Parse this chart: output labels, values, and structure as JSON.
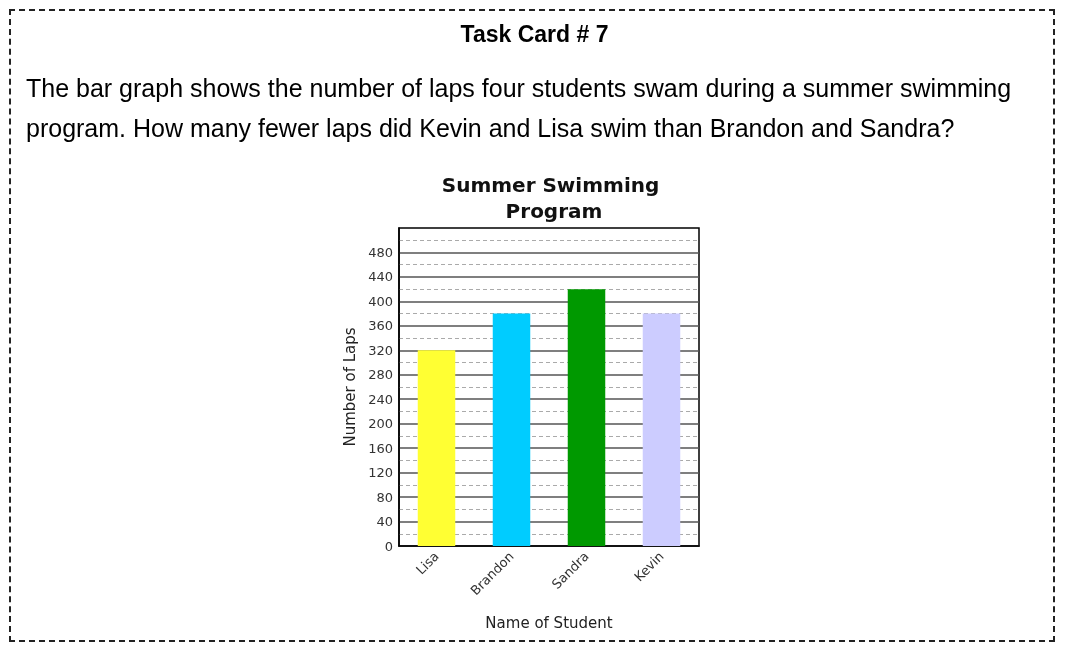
{
  "chart_data": {
    "type": "bar",
    "title": "Summer Swimming Program",
    "xlabel": "Name of Student",
    "ylabel": "Number of Laps",
    "categories": [
      "Lisa",
      "Brandon",
      "Sandra",
      "Kevin"
    ],
    "values": [
      320,
      380,
      420,
      380
    ],
    "colors": [
      "#ffff33",
      "#00ccff",
      "#009900",
      "#ccccff"
    ],
    "ylim": [
      0,
      520
    ],
    "yticks": [
      0,
      {
        "value": 20,
        "label": null
      },
      40,
      {
        "value": 60,
        "label": null
      },
      80,
      {
        "value": 100,
        "label": null
      },
      120,
      {
        "value": 140,
        "label": null
      },
      160,
      {
        "value": 180,
        "label": null
      },
      200,
      {
        "value": 220,
        "label": null
      },
      240,
      {
        "value": 260,
        "label": null
      },
      280,
      {
        "value": 300,
        "label": null
      },
      320,
      {
        "value": 340,
        "label": null
      },
      360,
      {
        "value": 380,
        "label": null
      },
      400,
      {
        "value": 420,
        "label": null
      },
      440,
      {
        "value": 460,
        "label": null
      },
      480,
      {
        "value": 500,
        "label": null
      }
    ],
    "grid": "y",
    "annotations": [
      "Task Card # 7",
      "The bar graph shows the number of laps four students swam during a summer swimming program. How many fewer laps did Kevin and Lisa swim than Brandon and Sandra?"
    ]
  }
}
